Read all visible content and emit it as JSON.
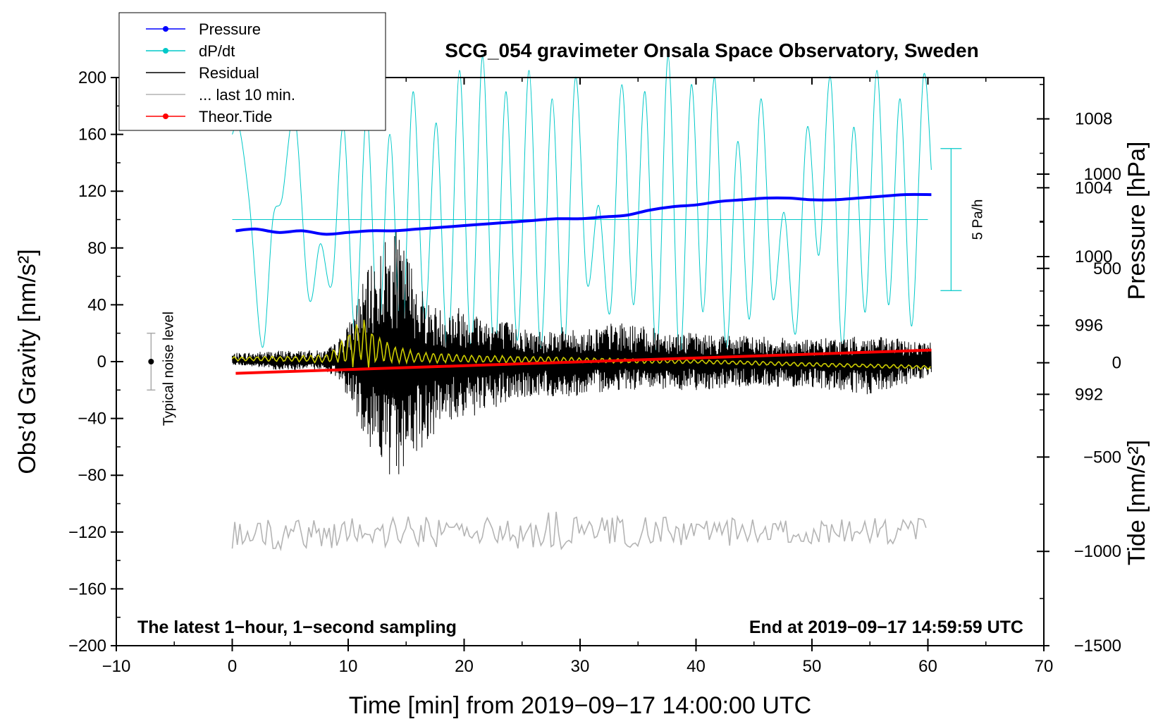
{
  "chart_data": {
    "type": "line",
    "title": "SCG_054 gravimeter Onsala Space Observatory, Sweden",
    "xlabel": "Time [min] from 2019−09−17 14:00:00 UTC",
    "ylabel_left": "Obs’d Gravity [nm/s²]",
    "ylabel_pressure": "Pressure [hPa]",
    "ylabel_tide": "Tide [nm/s²]",
    "footer_left": "The latest 1−hour, 1−second sampling",
    "footer_right": "End at 2019−09−17 14:59:59 UTC",
    "xlim": [
      -10,
      70
    ],
    "ylim": [
      -200,
      200
    ],
    "x_ticks": [
      "−10",
      "0",
      "10",
      "20",
      "30",
      "40",
      "50",
      "60",
      "70"
    ],
    "y_ticks": [
      "200",
      "160",
      "120",
      "80",
      "40",
      "0",
      "−40",
      "−80",
      "−120",
      "−160",
      "−200"
    ],
    "pressure_ticks": [
      "1008",
      "1004",
      "1000",
      "996",
      "992"
    ],
    "pressure_axis": {
      "value_at_gravity_200": 1010.4,
      "hPa_per_gravity_unit": 0.0825
    },
    "tide_ticks": [
      "1000",
      "500",
      "0",
      "−500",
      "−1000",
      "−1500"
    ],
    "tide_axis": {
      "value_at_gravity_neg200": -1500,
      "nms2_per_gravity_unit": 7.53
    },
    "legend": {
      "position": "top-left",
      "entries": [
        {
          "label": "Pressure",
          "color": "#0000ff",
          "marker": true
        },
        {
          "label": "dP/dt",
          "color": "#00c8c8",
          "marker": true
        },
        {
          "label": "Residual",
          "color": "#000000",
          "marker": false
        },
        {
          "label": "... last 10 min.",
          "color": "#b4b4b4",
          "marker": false
        },
        {
          "label": "Theor.Tide",
          "color": "#ff0000",
          "marker": true
        }
      ]
    },
    "noise_bar": {
      "label": "Typical noise level",
      "x": -7,
      "center": 0,
      "half_range": 20
    },
    "dpdt_scale_bar": {
      "label": "5 Pa/h",
      "x": 62,
      "top": 150,
      "bottom": 50
    },
    "series": [
      {
        "name": "Pressure",
        "color": "#0000ff",
        "axis": "pressure",
        "x": [
          0.3,
          2,
          4,
          6,
          8,
          10,
          12,
          14,
          16,
          18,
          20,
          22,
          24,
          26,
          28,
          30,
          32,
          34,
          36,
          38,
          40,
          42,
          44,
          46,
          48,
          50,
          52,
          54,
          56,
          58,
          60.3
        ],
        "values": [
          1001.5,
          1001.6,
          1001.4,
          1001.5,
          1001.3,
          1001.4,
          1001.5,
          1001.5,
          1001.6,
          1001.7,
          1001.8,
          1001.9,
          1002.0,
          1002.1,
          1002.2,
          1002.2,
          1002.3,
          1002.4,
          1002.7,
          1002.9,
          1003.0,
          1003.2,
          1003.3,
          1003.4,
          1003.4,
          1003.3,
          1003.3,
          1003.4,
          1003.5,
          1003.6,
          1003.6
        ]
      },
      {
        "name": "dP/dt",
        "color": "#00c8c8",
        "axis": "left",
        "baseline": 100,
        "x": [
          0,
          0.6,
          1.5,
          2.6,
          3.5,
          4.3,
          5.4,
          6.6,
          7.6,
          8.6,
          9.6,
          10.6,
          11.6,
          12.6,
          13.6,
          14.6,
          15.6,
          16.6,
          17.6,
          18.6,
          19.6,
          20.6,
          21.6,
          22.6,
          23.6,
          24.6,
          25.6,
          26.6,
          27.6,
          28.6,
          29.6,
          30.6,
          31.6,
          32.6,
          33.6,
          34.6,
          35.6,
          36.6,
          37.6,
          38.6,
          39.6,
          40.6,
          41.6,
          42.6,
          43.6,
          44.6,
          45.6,
          46.6,
          47.6,
          48.6,
          49.6,
          50.6,
          51.6,
          52.6,
          53.6,
          54.6,
          55.6,
          56.6,
          57.6,
          58.6,
          59.6,
          60.3
        ],
        "values": [
          160,
          165,
          110,
          10,
          100,
          115,
          172,
          45,
          83,
          55,
          166,
          20,
          174,
          15,
          160,
          8,
          190,
          30,
          168,
          5,
          205,
          10,
          215,
          0,
          190,
          15,
          205,
          10,
          185,
          5,
          200,
          55,
          110,
          35,
          195,
          40,
          190,
          5,
          215,
          0,
          195,
          35,
          200,
          10,
          155,
          30,
          185,
          45,
          105,
          20,
          165,
          75,
          200,
          10,
          165,
          35,
          205,
          40,
          185,
          25,
          200,
          135
        ]
      },
      {
        "name": "Residual",
        "color": "#000000",
        "axis": "left",
        "x": [
          0,
          4,
          8,
          9,
          10,
          11,
          12,
          13,
          13.5,
          14,
          14.5,
          15,
          16,
          17,
          18,
          20,
          22,
          24,
          26,
          28,
          30,
          33,
          36,
          40,
          45,
          50,
          55,
          60.3
        ],
        "values_upper": [
          6,
          8,
          8,
          14,
          26,
          50,
          70,
          85,
          90,
          95,
          86,
          80,
          60,
          42,
          38,
          40,
          32,
          28,
          22,
          25,
          22,
          28,
          24,
          20,
          18,
          16,
          18,
          14
        ],
        "values_lower": [
          -2,
          -6,
          -6,
          -12,
          -25,
          -45,
          -62,
          -70,
          -88,
          -95,
          -80,
          -70,
          -65,
          -55,
          -45,
          -40,
          -38,
          -28,
          -25,
          -25,
          -24,
          -20,
          -20,
          -20,
          -18,
          -18,
          -25,
          -10
        ]
      },
      {
        "name": "Residual smoothed",
        "color": "#cccc00",
        "axis": "left",
        "x": [
          0,
          4,
          8,
          9,
          10,
          11,
          12,
          13,
          14,
          16,
          20,
          30,
          40,
          50,
          60.3
        ],
        "values": [
          2,
          2,
          2,
          5,
          10,
          15,
          10,
          8,
          5,
          3,
          2,
          1,
          0,
          -2,
          -4
        ],
        "amplitude": [
          1.5,
          2,
          3,
          7,
          14,
          20,
          16,
          10,
          6,
          4,
          3,
          2,
          1.5,
          1.5,
          1.5
        ]
      },
      {
        "name": "... last 10 min.",
        "color": "#b4b4b4",
        "axis": "left",
        "x": [
          0,
          10,
          20,
          27.5,
          28.3,
          29,
          40,
          50,
          60
        ],
        "center": [
          -123,
          -120,
          -120,
          -120,
          -118,
          -120,
          -120,
          -120,
          -120
        ],
        "amplitude": [
          10,
          12,
          10,
          14,
          20,
          12,
          10,
          10,
          10
        ]
      },
      {
        "name": "Theor.Tide",
        "color": "#ff0000",
        "axis": "tide",
        "x": [
          0.3,
          60.3
        ],
        "values": [
          -56,
          67
        ]
      }
    ]
  }
}
